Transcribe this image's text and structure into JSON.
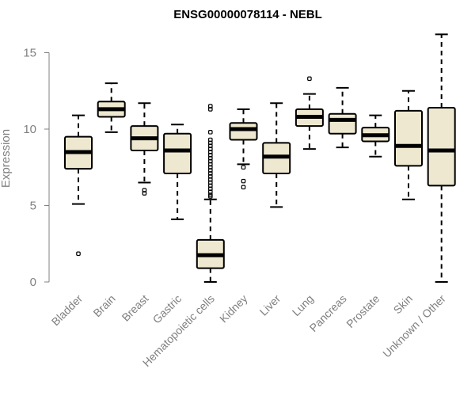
{
  "chart_data": {
    "type": "boxplot",
    "title": "ENSG00000078114 - NEBL",
    "ylabel": "Expression",
    "xlabel": "",
    "ylim": [
      0,
      16.3
    ],
    "yticks": [
      0,
      5,
      10,
      15
    ],
    "box_fill": "#EEE8D0",
    "categories": [
      "Bladder",
      "Brain",
      "Breast",
      "Gastric",
      "Hematopoietic cells",
      "Kidney",
      "Liver",
      "Lung",
      "Pancreas",
      "Prostate",
      "Skin",
      "Unknown / Other"
    ],
    "boxes": [
      {
        "name": "Bladder",
        "min": 5.1,
        "q1": 7.4,
        "median": 8.5,
        "q3": 9.5,
        "max": 10.9,
        "outliers": [
          1.85
        ]
      },
      {
        "name": "Brain",
        "min": 9.8,
        "q1": 10.8,
        "median": 11.3,
        "q3": 11.8,
        "max": 13.0,
        "outliers": []
      },
      {
        "name": "Breast",
        "min": 6.5,
        "q1": 8.6,
        "median": 9.4,
        "q3": 10.2,
        "max": 11.7,
        "outliers": [
          6.0,
          5.8
        ]
      },
      {
        "name": "Gastric",
        "min": 4.1,
        "q1": 7.1,
        "median": 8.6,
        "q3": 9.7,
        "max": 10.3,
        "outliers": []
      },
      {
        "name": "Hematopoietic cells",
        "min": 0.0,
        "q1": 0.9,
        "median": 1.75,
        "q3": 2.75,
        "max": 5.4,
        "outliers": [
          11.5,
          11.3,
          9.8,
          9.3,
          9.1,
          8.9,
          8.7,
          8.5,
          8.3,
          8.1,
          7.9,
          7.7,
          7.5,
          7.3,
          7.1,
          6.9,
          6.7,
          6.5,
          6.3,
          6.1,
          5.9,
          5.7,
          5.6
        ]
      },
      {
        "name": "Kidney",
        "min": 7.7,
        "q1": 9.3,
        "median": 10.0,
        "q3": 10.4,
        "max": 11.3,
        "outliers": [
          7.5,
          6.6,
          6.2
        ]
      },
      {
        "name": "Liver",
        "min": 4.9,
        "q1": 7.1,
        "median": 8.2,
        "q3": 9.1,
        "max": 11.7,
        "outliers": []
      },
      {
        "name": "Lung",
        "min": 8.7,
        "q1": 10.2,
        "median": 10.8,
        "q3": 11.3,
        "max": 12.3,
        "outliers": [
          13.3
        ]
      },
      {
        "name": "Pancreas",
        "min": 8.8,
        "q1": 9.7,
        "median": 10.6,
        "q3": 11.0,
        "max": 12.7,
        "outliers": []
      },
      {
        "name": "Prostate",
        "min": 8.2,
        "q1": 9.2,
        "median": 9.6,
        "q3": 10.1,
        "max": 10.9,
        "outliers": []
      },
      {
        "name": "Skin",
        "min": 5.4,
        "q1": 7.6,
        "median": 8.9,
        "q3": 11.2,
        "max": 12.5,
        "outliers": []
      },
      {
        "name": "Unknown / Other",
        "min": 0.0,
        "q1": 6.3,
        "median": 8.6,
        "q3": 11.4,
        "max": 16.2,
        "outliers": []
      }
    ]
  }
}
